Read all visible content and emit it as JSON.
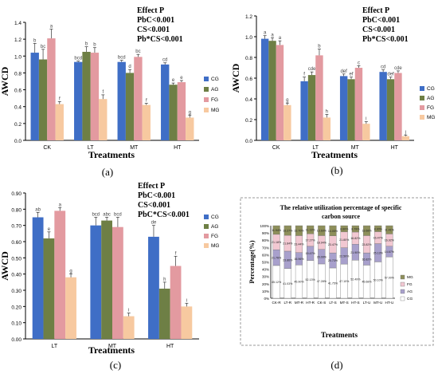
{
  "chart_data": [
    {
      "type": "bar",
      "panel_label": "(a)",
      "ylabel": "AWCD",
      "xlabel": "Treatments",
      "ylim": [
        0,
        1.4
      ],
      "yticks": [
        "0.0",
        "0.2",
        "0.4",
        "0.6",
        "0.8",
        "1.0",
        "1.2",
        "1.4"
      ],
      "categories": [
        "CK",
        "LT",
        "MT",
        "HT"
      ],
      "series": [
        {
          "name": "CG",
          "color": "#3f6ec6",
          "values": [
            1.04,
            0.93,
            0.93,
            0.9
          ],
          "errors": [
            0.11,
            0.01,
            0.02,
            0.02
          ],
          "labels": [
            "b",
            "bcd",
            "bcd",
            "cd"
          ]
        },
        {
          "name": "AG",
          "color": "#6e7f45",
          "values": [
            0.96,
            1.05,
            0.8,
            0.66
          ],
          "errors": [
            0.12,
            0.06,
            0.04,
            0.02
          ],
          "labels": [
            "bc",
            "b",
            "d",
            "e"
          ]
        },
        {
          "name": "FG",
          "color": "#e39aa0",
          "values": [
            1.21,
            1.04,
            0.99,
            0.69
          ],
          "errors": [
            0.11,
            0.06,
            0.03,
            0.02
          ],
          "labels": [
            "a",
            "b",
            "bc",
            "e"
          ]
        },
        {
          "name": "MG",
          "color": "#f7c9a0",
          "values": [
            0.43,
            0.49,
            0.42,
            0.27
          ],
          "errors": [
            0.03,
            0.05,
            0.02,
            0.03
          ],
          "labels": [
            "f",
            "f",
            "f",
            "g"
          ]
        }
      ],
      "annotation": [
        "Effect  P",
        "PbC<0.001",
        "CS<0.001",
        "Pb*CS<0.001"
      ]
    },
    {
      "type": "bar",
      "panel_label": "(b)",
      "ylabel": "AWCD",
      "xlabel": "Treatments",
      "ylim": [
        0,
        1.2
      ],
      "yticks": [
        "0.0",
        "0.2",
        "0.4",
        "0.6",
        "0.8",
        "1.0",
        "1.2"
      ],
      "categories": [
        "CK",
        "LT",
        "MT",
        "HT"
      ],
      "series": [
        {
          "name": "CG",
          "color": "#3f6ec6",
          "values": [
            0.98,
            0.57,
            0.62,
            0.66
          ],
          "errors": [
            0.03,
            0.04,
            0.02,
            0.02
          ],
          "labels": [
            "a",
            "f",
            "def",
            "cd"
          ]
        },
        {
          "name": "AG",
          "color": "#6e7f45",
          "values": [
            0.96,
            0.63,
            0.59,
            0.59
          ],
          "errors": [
            0.03,
            0.03,
            0.02,
            0.02
          ],
          "labels": [
            "a",
            "cde",
            "ef",
            "def"
          ]
        },
        {
          "name": "FG",
          "color": "#e39aa0",
          "values": [
            0.92,
            0.82,
            0.7,
            0.65
          ],
          "errors": [
            0.04,
            0.06,
            0.02,
            0.02
          ],
          "labels": [
            "a",
            "b",
            "c",
            "cde"
          ]
        },
        {
          "name": "MG",
          "color": "#f7c9a0",
          "values": [
            0.34,
            0.22,
            0.16,
            0.04
          ],
          "errors": [
            0.02,
            0.03,
            0.02,
            0.01
          ],
          "labels": [
            "g",
            "h",
            "i",
            "j"
          ]
        }
      ],
      "annotation": [
        "Effect  P",
        "PbC<0.001",
        "CS<0.001",
        "Pb*CS<0.001"
      ]
    },
    {
      "type": "bar",
      "panel_label": "(c)",
      "ylabel": "AWCD",
      "xlabel": "Treatments",
      "ylim": [
        0,
        0.9
      ],
      "yticks": [
        "0.00",
        "0.10",
        "0.20",
        "0.30",
        "0.40",
        "0.50",
        "0.60",
        "0.70",
        "0.80",
        "0.90"
      ],
      "categories": [
        "LT",
        "MT",
        "HT"
      ],
      "series": [
        {
          "name": "CG",
          "color": "#3f6ec6",
          "values": [
            0.75,
            0.7,
            0.63
          ],
          "errors": [
            0.03,
            0.05,
            0.07
          ],
          "labels": [
            "ab",
            "bcd",
            "de"
          ]
        },
        {
          "name": "AG",
          "color": "#6e7f45",
          "values": [
            0.62,
            0.73,
            0.31
          ],
          "errors": [
            0.04,
            0.02,
            0.04
          ],
          "labels": [
            "e",
            "abc",
            "h"
          ]
        },
        {
          "name": "FG",
          "color": "#e39aa0",
          "values": [
            0.79,
            0.69,
            0.45
          ],
          "errors": [
            0.02,
            0.06,
            0.06
          ],
          "labels": [
            "a",
            "bcd",
            "f"
          ]
        },
        {
          "name": "MG",
          "color": "#f7c9a0",
          "values": [
            0.38,
            0.14,
            0.2
          ],
          "errors": [
            0.02,
            0.02,
            0.02
          ],
          "labels": [
            "g",
            "i",
            "i"
          ]
        }
      ],
      "annotation": [
        "Effect  P",
        "PbC<0.001",
        "CS<0.001",
        "PbC*CS<0.001"
      ]
    },
    {
      "type": "bar",
      "subtype": "stacked-percent",
      "panel_label": "(d)",
      "title": "The relative utilization percentage of specific carbon source",
      "ylabel": "Percentage(%)",
      "xlabel": "Treatments",
      "ylim": [
        0,
        100
      ],
      "yticks": [
        "0%",
        "10%",
        "20%",
        "30%",
        "40%",
        "50%",
        "60%",
        "70%",
        "80%",
        "90%",
        "100%"
      ],
      "categories": [
        "CK-R",
        "LT-R",
        "MT-R",
        "HT-R",
        "CK-S",
        "LT-S",
        "MT-S",
        "HT-S",
        "LT-U",
        "MT-U",
        "HT-U"
      ],
      "series": [
        {
          "name": "CG",
          "color": "#ffffff",
          "values": [
            45.12,
            41.03,
            45.9,
            52.13,
            47.28,
            41.75,
            47.1,
            52.49,
            45.68,
            50.1,
            57.0
          ],
          "labels": [
            "45.12%",
            "41.03%",
            "45.90%",
            "52.13%",
            "47.28%",
            "41.75%",
            "47.10%",
            "52.49%",
            "45.68%",
            "50.10%",
            "57.00%"
          ]
        },
        {
          "name": "AG",
          "color": "#a8a0cc",
          "values": [
            21.76,
            23.86,
            16.96,
            19.47,
            20.09,
            20.73,
            22.5,
            21.9,
            16.82,
            25.13,
            14.67
          ],
          "labels": [
            "21.76%",
            "23.86%",
            "16.96%",
            "19.47%",
            "20.09%",
            "20.73%",
            "22.50%",
            "21.90%",
            "16.82%",
            "25.13%",
            "14.67%"
          ]
        },
        {
          "name": "FG",
          "color": "#f2c8d2",
          "values": [
            21.18,
            21.84,
            23.44,
            17.27,
            18.94,
            23.47,
            21.8,
            16.82,
            23.82,
            16.47,
            16.92
          ],
          "labels": [
            "21.18%",
            "21.84%",
            "23.44%",
            "17.27%",
            "18.94%",
            "23.47%",
            "21.80%",
            "16.82%",
            "23.82%",
            "16.47%",
            "16.92%"
          ]
        },
        {
          "name": "MG",
          "color": "#8e8f5a",
          "values": [
            11.94,
            13.27,
            13.7,
            11.13,
            13.69,
            14.05,
            8.6,
            8.79,
            13.68,
            8.3,
            11.41
          ],
          "labels": [
            "11.94%",
            "13.27%",
            "13.70%",
            "11.13%",
            "13.69%",
            "14.05%",
            "8.60%",
            "8.79%",
            "13.68%",
            "8.30%",
            "11.41%"
          ]
        }
      ]
    }
  ]
}
